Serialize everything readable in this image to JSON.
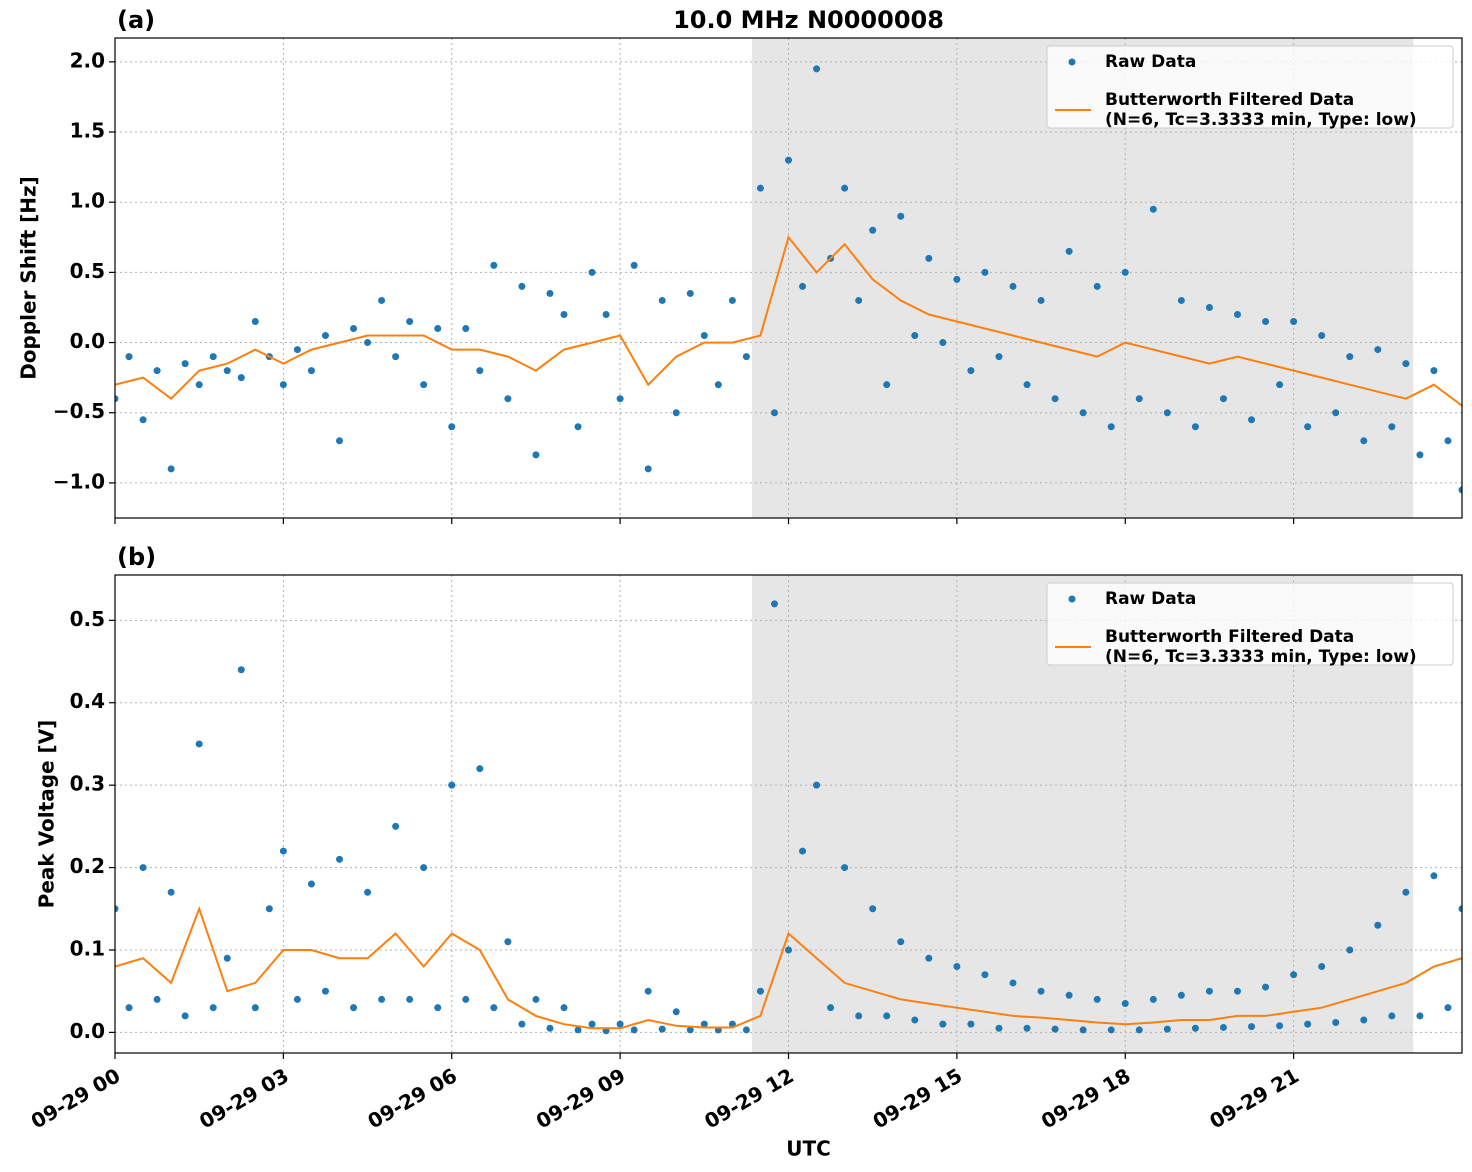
{
  "chart_data": [
    {
      "type": "scatter_line",
      "panel_label": "(a)",
      "title": "10.0 MHz N0000008",
      "y_label": "Doppler Shift [Hz]",
      "xlim": [
        0,
        24
      ],
      "xticks": [
        0,
        3,
        6,
        9,
        12,
        15,
        18,
        21
      ],
      "ylim": [
        -1.25,
        2.17
      ],
      "yticks": [
        {
          "value": -1.0,
          "label": "−1.0"
        },
        {
          "value": -0.5,
          "label": "−0.5"
        },
        {
          "value": 0.0,
          "label": "0.0"
        },
        {
          "value": 0.5,
          "label": "0.5"
        },
        {
          "value": 1.0,
          "label": "1.0"
        },
        {
          "value": 1.5,
          "label": "1.5"
        },
        {
          "value": 2.0,
          "label": "2.0"
        }
      ],
      "grid": true,
      "shaded_span": [
        11.35,
        23.13
      ],
      "shade_color": "#e6e6e6",
      "legend": "upper right",
      "series": [
        {
          "name": "Raw Data",
          "kind": "points",
          "color": "#1f77b4",
          "x": [
            0,
            0.25,
            0.5,
            0.75,
            1,
            1.25,
            1.5,
            1.75,
            2,
            2.25,
            2.5,
            2.75,
            3,
            3.25,
            3.5,
            3.75,
            4,
            4.25,
            4.5,
            4.75,
            5,
            5.25,
            5.5,
            5.75,
            6,
            6.25,
            6.5,
            6.75,
            7,
            7.25,
            7.5,
            7.75,
            8,
            8.25,
            8.5,
            8.75,
            9,
            9.25,
            9.5,
            9.75,
            10,
            10.25,
            10.5,
            10.75,
            11,
            11.25,
            11.5,
            11.75,
            12,
            12.25,
            12.5,
            12.75,
            13,
            13.25,
            13.5,
            13.75,
            14,
            14.25,
            14.5,
            14.75,
            15,
            15.25,
            15.5,
            15.75,
            16,
            16.25,
            16.5,
            16.75,
            17,
            17.25,
            17.5,
            17.75,
            18,
            18.25,
            18.5,
            18.75,
            19,
            19.25,
            19.5,
            19.75,
            20,
            20.25,
            20.5,
            20.75,
            21,
            21.25,
            21.5,
            21.75,
            22,
            22.25,
            22.5,
            22.75,
            23,
            23.25,
            23.5,
            23.75,
            24
          ],
          "values": [
            -0.4,
            -0.1,
            -0.55,
            -0.2,
            -0.9,
            -0.15,
            -0.3,
            -0.1,
            -0.2,
            -0.25,
            0.15,
            -0.1,
            -0.3,
            -0.05,
            -0.2,
            0.05,
            -0.7,
            0.1,
            0.0,
            0.3,
            -0.1,
            0.15,
            -0.3,
            0.1,
            -0.6,
            0.1,
            -0.2,
            0.55,
            -0.4,
            0.4,
            -0.8,
            0.35,
            0.2,
            -0.6,
            0.5,
            0.2,
            -0.4,
            0.55,
            -0.9,
            0.3,
            -0.5,
            0.35,
            0.05,
            -0.3,
            0.3,
            -0.1,
            1.1,
            -0.5,
            1.3,
            0.4,
            1.95,
            0.6,
            1.1,
            0.3,
            0.8,
            -0.3,
            0.9,
            0.05,
            0.6,
            0.0,
            0.45,
            -0.2,
            0.5,
            -0.1,
            0.4,
            -0.3,
            0.3,
            -0.4,
            0.65,
            -0.5,
            0.4,
            -0.6,
            0.5,
            -0.4,
            0.95,
            -0.5,
            0.3,
            -0.6,
            0.25,
            -0.4,
            0.2,
            -0.55,
            0.15,
            -0.3,
            0.15,
            -0.6,
            0.05,
            -0.5,
            -0.1,
            -0.7,
            -0.05,
            -0.6,
            -0.15,
            -0.8,
            -0.2,
            -0.7,
            -1.05
          ]
        },
        {
          "name": "Butterworth Filtered Data\n(N=6, Tc=3.3333 min, Type: low)",
          "kind": "line",
          "color": "#ff7f0e",
          "x": [
            0,
            0.5,
            1,
            1.5,
            2,
            2.5,
            3,
            3.5,
            4,
            4.5,
            5,
            5.5,
            6,
            6.5,
            7,
            7.5,
            8,
            8.5,
            9,
            9.5,
            10,
            10.5,
            11,
            11.5,
            12,
            12.5,
            13,
            13.5,
            14,
            14.5,
            15,
            15.5,
            16,
            16.5,
            17,
            17.5,
            18,
            18.5,
            19,
            19.5,
            20,
            20.5,
            21,
            21.5,
            22,
            22.5,
            23,
            23.5,
            24
          ],
          "values": [
            -0.3,
            -0.25,
            -0.4,
            -0.2,
            -0.15,
            -0.05,
            -0.15,
            -0.05,
            0.0,
            0.05,
            0.05,
            0.05,
            -0.05,
            -0.05,
            -0.1,
            -0.2,
            -0.05,
            0.0,
            0.05,
            -0.3,
            -0.1,
            0.0,
            0.0,
            0.05,
            0.75,
            0.5,
            0.7,
            0.45,
            0.3,
            0.2,
            0.15,
            0.1,
            0.05,
            0.0,
            -0.05,
            -0.1,
            0.0,
            -0.05,
            -0.1,
            -0.15,
            -0.1,
            -0.15,
            -0.2,
            -0.25,
            -0.3,
            -0.35,
            -0.4,
            -0.3,
            -0.45
          ]
        }
      ]
    },
    {
      "type": "scatter_line",
      "panel_label": "(b)",
      "y_label": "Peak Voltage [V]",
      "x_label": "UTC",
      "xlim": [
        0,
        24
      ],
      "xticks": [
        {
          "value": 0,
          "label": "09-29 00"
        },
        {
          "value": 3,
          "label": "09-29 03"
        },
        {
          "value": 6,
          "label": "09-29 06"
        },
        {
          "value": 9,
          "label": "09-29 09"
        },
        {
          "value": 12,
          "label": "09-29 12"
        },
        {
          "value": 15,
          "label": "09-29 15"
        },
        {
          "value": 18,
          "label": "09-29 18"
        },
        {
          "value": 21,
          "label": "09-29 21"
        }
      ],
      "ylim": [
        -0.025,
        0.555
      ],
      "yticks": [
        {
          "value": 0.0,
          "label": "0.0"
        },
        0.1,
        0.2,
        0.3,
        0.4,
        0.5
      ],
      "grid": true,
      "shaded_span": [
        11.35,
        23.13
      ],
      "shade_color": "#e6e6e6",
      "legend": "upper right",
      "series": [
        {
          "name": "Raw Data",
          "kind": "points",
          "color": "#1f77b4",
          "x": [
            0,
            0.25,
            0.5,
            0.75,
            1,
            1.25,
            1.5,
            1.75,
            2,
            2.25,
            2.5,
            2.75,
            3,
            3.25,
            3.5,
            3.75,
            4,
            4.25,
            4.5,
            4.75,
            5,
            5.25,
            5.5,
            5.75,
            6,
            6.25,
            6.5,
            6.75,
            7,
            7.25,
            7.5,
            7.75,
            8,
            8.25,
            8.5,
            8.75,
            9,
            9.25,
            9.5,
            9.75,
            10,
            10.25,
            10.5,
            10.75,
            11,
            11.25,
            11.5,
            11.75,
            12,
            12.25,
            12.5,
            12.75,
            13,
            13.25,
            13.5,
            13.75,
            14,
            14.25,
            14.5,
            14.75,
            15,
            15.25,
            15.5,
            15.75,
            16,
            16.25,
            16.5,
            16.75,
            17,
            17.25,
            17.5,
            17.75,
            18,
            18.25,
            18.5,
            18.75,
            19,
            19.25,
            19.5,
            19.75,
            20,
            20.25,
            20.5,
            20.75,
            21,
            21.25,
            21.5,
            21.75,
            22,
            22.25,
            22.5,
            22.75,
            23,
            23.25,
            23.5,
            23.75,
            24
          ],
          "values": [
            0.15,
            0.03,
            0.2,
            0.04,
            0.17,
            0.02,
            0.35,
            0.03,
            0.09,
            0.44,
            0.03,
            0.15,
            0.22,
            0.04,
            0.18,
            0.05,
            0.21,
            0.03,
            0.17,
            0.04,
            0.25,
            0.04,
            0.2,
            0.03,
            0.3,
            0.04,
            0.32,
            0.03,
            0.11,
            0.01,
            0.04,
            0.005,
            0.03,
            0.003,
            0.01,
            0.002,
            0.01,
            0.003,
            0.05,
            0.004,
            0.025,
            0.003,
            0.01,
            0.003,
            0.01,
            0.003,
            0.05,
            0.52,
            0.1,
            0.22,
            0.3,
            0.03,
            0.2,
            0.02,
            0.15,
            0.02,
            0.11,
            0.015,
            0.09,
            0.01,
            0.08,
            0.01,
            0.07,
            0.005,
            0.06,
            0.005,
            0.05,
            0.004,
            0.045,
            0.003,
            0.04,
            0.003,
            0.035,
            0.003,
            0.04,
            0.004,
            0.045,
            0.005,
            0.05,
            0.006,
            0.05,
            0.007,
            0.055,
            0.008,
            0.07,
            0.01,
            0.08,
            0.012,
            0.1,
            0.015,
            0.13,
            0.02,
            0.17,
            0.02,
            0.19,
            0.03,
            0.15
          ]
        },
        {
          "name": "Butterworth Filtered Data\n(N=6, Tc=3.3333 min, Type: low)",
          "kind": "line",
          "color": "#ff7f0e",
          "x": [
            0,
            0.5,
            1,
            1.5,
            2,
            2.5,
            3,
            3.5,
            4,
            4.5,
            5,
            5.5,
            6,
            6.5,
            7,
            7.5,
            8,
            8.5,
            9,
            9.5,
            10,
            10.5,
            11,
            11.5,
            12,
            12.5,
            13,
            13.5,
            14,
            14.5,
            15,
            15.5,
            16,
            16.5,
            17,
            17.5,
            18,
            18.5,
            19,
            19.5,
            20,
            20.5,
            21,
            21.5,
            22,
            22.5,
            23,
            23.5,
            24
          ],
          "values": [
            0.08,
            0.09,
            0.06,
            0.15,
            0.05,
            0.06,
            0.1,
            0.1,
            0.09,
            0.09,
            0.12,
            0.08,
            0.12,
            0.1,
            0.04,
            0.02,
            0.01,
            0.005,
            0.005,
            0.015,
            0.008,
            0.006,
            0.006,
            0.02,
            0.12,
            0.09,
            0.06,
            0.05,
            0.04,
            0.035,
            0.03,
            0.025,
            0.02,
            0.018,
            0.015,
            0.012,
            0.01,
            0.012,
            0.015,
            0.015,
            0.02,
            0.02,
            0.025,
            0.03,
            0.04,
            0.05,
            0.06,
            0.08,
            0.09
          ]
        }
      ]
    }
  ]
}
